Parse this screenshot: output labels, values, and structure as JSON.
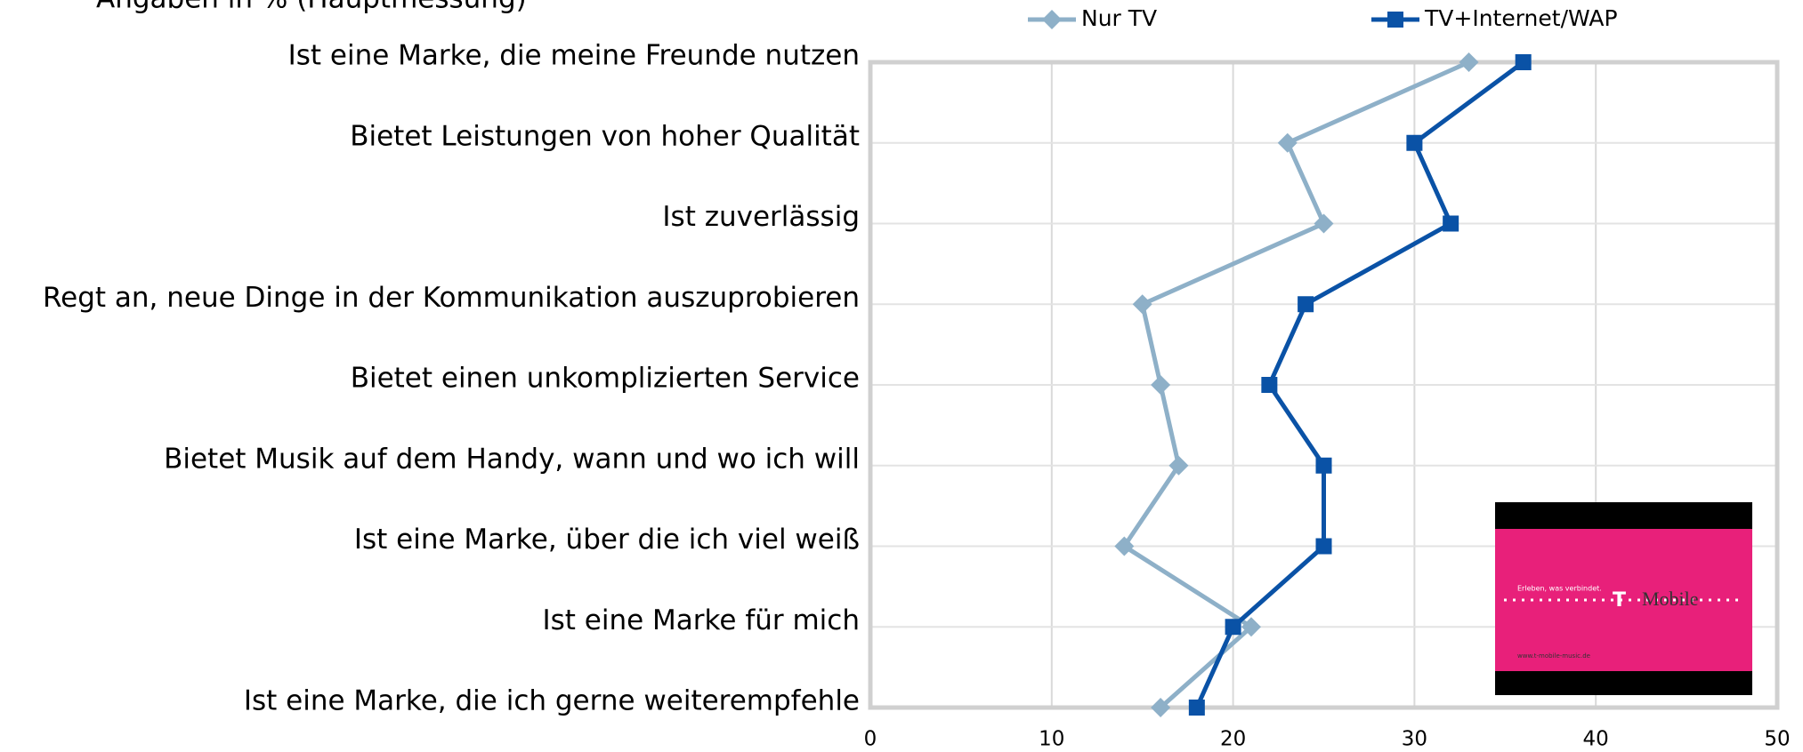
{
  "chart_data": {
    "type": "line",
    "orientation": "horizontal",
    "subtitle": "Angaben in % (Hauptmessung)",
    "categories": [
      "Ist eine Marke, die meine Freunde nutzen",
      "Bietet Leistungen von hoher Qualität",
      "Ist zuverlässig",
      "Regt an, neue Dinge in der Kommunikation auszuprobieren",
      "Bietet einen unkomplizierten Service",
      "Bietet Musik auf dem Handy, wann und wo ich will",
      "Ist eine Marke, über die ich viel weiß",
      "Ist eine Marke für mich",
      "Ist eine Marke, die ich gerne weiterempfehle"
    ],
    "series": [
      {
        "name": "Nur TV",
        "color": "#8eb0c8",
        "marker": "diamond",
        "values": [
          33,
          23,
          25,
          15,
          16,
          17,
          14,
          21,
          16
        ]
      },
      {
        "name": "TV+Internet/WAP",
        "color": "#0a52a6",
        "marker": "square",
        "values": [
          36,
          30,
          32,
          24,
          22,
          25,
          25,
          20,
          18
        ]
      }
    ],
    "xlim": [
      0,
      50
    ],
    "xticks": [
      0,
      10,
      20,
      30,
      40,
      50
    ],
    "grid": true,
    "legend": "top"
  },
  "inset": {
    "slogan": "Erleben, was verbindet.",
    "logo": "Mobile",
    "url": "www.t-mobile-music.de"
  }
}
